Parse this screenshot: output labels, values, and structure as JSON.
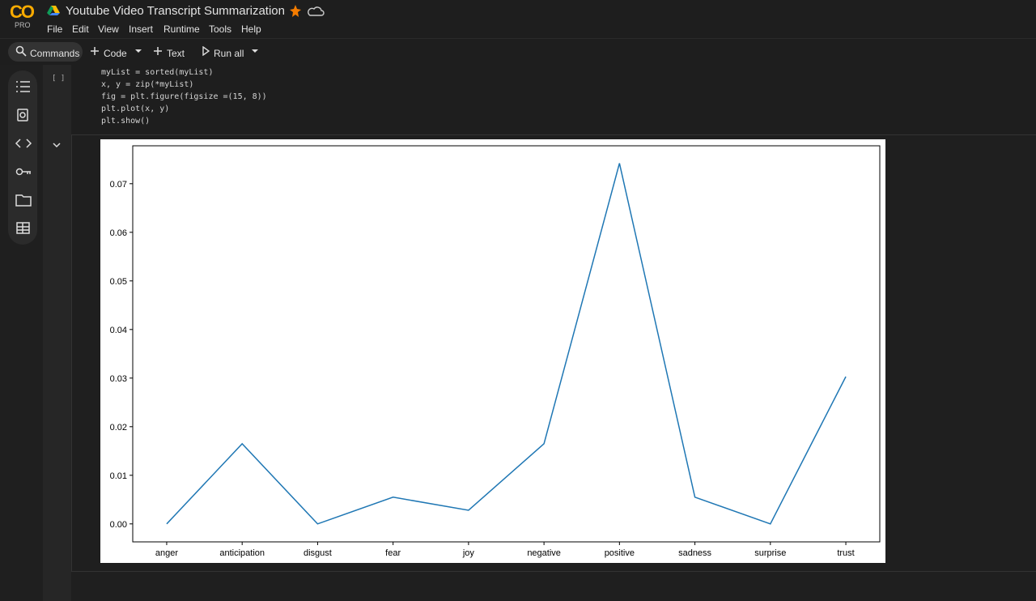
{
  "header": {
    "logo": "CO",
    "plan": "PRO",
    "title": "Youtube Video Transcript Summarization",
    "menu": [
      "File",
      "Edit",
      "View",
      "Insert",
      "Runtime",
      "Tools",
      "Help"
    ]
  },
  "toolbar": {
    "commands": "Commands",
    "code": "Code",
    "text": "Text",
    "run_all": "Run all"
  },
  "cell": {
    "execution": "[ ]",
    "code": [
      "myList = sorted(myList)",
      "x, y = zip(*myList)",
      "fig = plt.figure(figsize =(15, 8))",
      "plt.plot(x, y)",
      "plt.show()"
    ]
  },
  "chart_data": {
    "type": "line",
    "categories": [
      "anger",
      "anticipation",
      "disgust",
      "fear",
      "joy",
      "negative",
      "positive",
      "sadness",
      "surprise",
      "trust"
    ],
    "series": [
      {
        "color": "#1f77b4",
        "values": [
          0,
          0.0165,
          0,
          0.0055,
          0.0028,
          0.0165,
          0.0742,
          0.0055,
          0,
          0.0303
        ]
      }
    ],
    "ylim": [
      -0.0037,
      0.0778
    ],
    "yticks": [
      {
        "value": 0,
        "label": "0.00"
      },
      {
        "value": 0.01,
        "label": "0.01"
      },
      {
        "value": 0.02,
        "label": "0.02"
      },
      {
        "value": 0.03,
        "label": "0.03"
      },
      {
        "value": 0.04,
        "label": "0.04"
      },
      {
        "value": 0.05,
        "label": "0.05"
      },
      {
        "value": 0.06,
        "label": "0.06"
      },
      {
        "value": 0.07,
        "label": "0.07"
      }
    ],
    "grid": false
  }
}
